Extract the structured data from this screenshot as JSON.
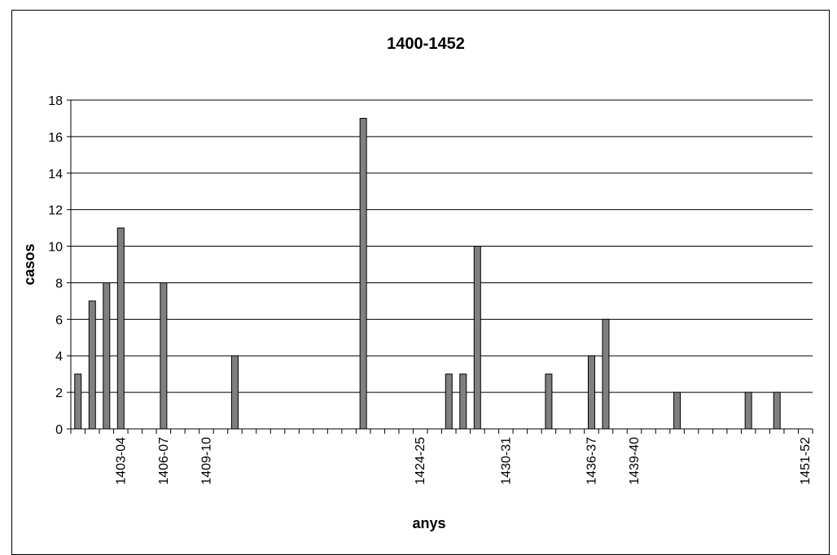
{
  "chart_data": {
    "type": "bar",
    "title": "1400-1452",
    "xlabel": "anys",
    "ylabel": "casos",
    "ylim": [
      0,
      18
    ],
    "yticks": [
      0,
      2,
      4,
      6,
      8,
      10,
      12,
      14,
      16,
      18
    ],
    "grid": true,
    "bar_color": "#808080",
    "categories": [
      "1400-01",
      "1401-02",
      "1402-03",
      "1403-04",
      "1404-05",
      "1405-06",
      "1406-07",
      "1407-08",
      "1408-09",
      "1409-10",
      "1410-11",
      "1411-12",
      "1412-13",
      "1413-14",
      "1414-15",
      "1415-16",
      "1416-17",
      "1417-18",
      "1418-19",
      "1419-20",
      "1420-21",
      "1421-22",
      "1422-23",
      "1423-24",
      "1424-25",
      "1425-26",
      "1426-27",
      "1427-28",
      "1428-29",
      "1429-30",
      "1430-31",
      "1431-32",
      "1432-33",
      "1433-34",
      "1434-35",
      "1435-36",
      "1436-37",
      "1437-38",
      "1438-39",
      "1439-40",
      "1440-41",
      "1441-42",
      "1442-43",
      "1443-44",
      "1444-45",
      "1445-46",
      "1446-47",
      "1447-48",
      "1448-49",
      "1449-50",
      "1450-51",
      "1451-52"
    ],
    "values": [
      3,
      7,
      8,
      11,
      0,
      0,
      8,
      0,
      0,
      0,
      0,
      4,
      0,
      0,
      0,
      0,
      0,
      0,
      0,
      0,
      17,
      0,
      0,
      0,
      0,
      0,
      3,
      3,
      10,
      0,
      0,
      0,
      0,
      3,
      0,
      0,
      4,
      6,
      0,
      0,
      0,
      0,
      2,
      0,
      0,
      0,
      0,
      2,
      0,
      2,
      0,
      0
    ],
    "shown_tick_labels": [
      "1403-04",
      "1406-07",
      "1409-10",
      "1424-25",
      "1430-31",
      "1436-37",
      "1439-40",
      "1451-52"
    ]
  }
}
